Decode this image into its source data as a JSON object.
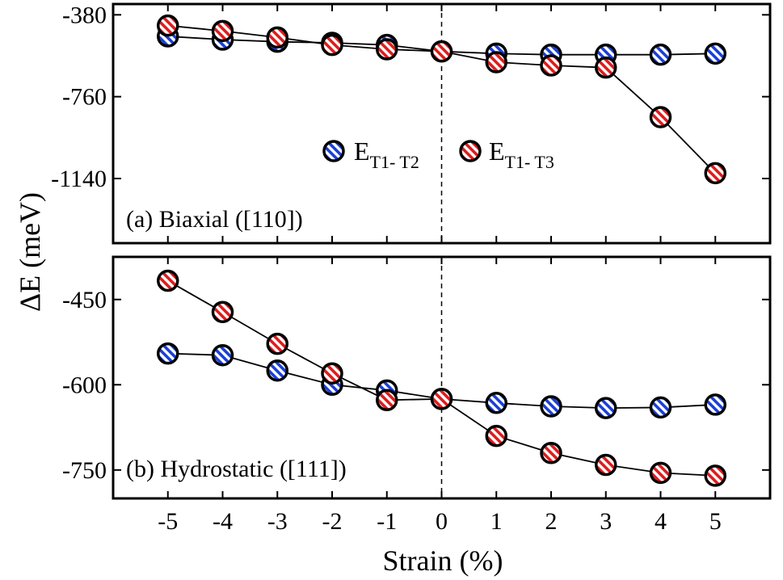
{
  "chart_data": {
    "type": "line",
    "xlabel": "Strain (%)",
    "ylabel": "ΔE  (meV)",
    "x": [
      -5,
      -4,
      -3,
      -2,
      -1,
      0,
      1,
      2,
      3,
      4,
      5
    ],
    "x_tick_labels": [
      "-5",
      "-4",
      "-3",
      "-2",
      "-1",
      "0",
      "1",
      "2",
      "3",
      "4",
      "5"
    ],
    "xlim": [
      -6,
      6
    ],
    "zero_line": "dashed vertical line at 0",
    "legend": {
      "placement": "top panel, center",
      "entries": [
        {
          "main": "E",
          "sub": "T1- T2",
          "color": "#1a3fd9"
        },
        {
          "main": "E",
          "sub": "T1- T3",
          "color": "#e01b1b"
        }
      ]
    },
    "panels": [
      {
        "label": "(a) Biaxial ([110])",
        "ylim": [
          -1440,
          -330
        ],
        "yticks": [
          -380,
          -760,
          -1140
        ],
        "y_tick_labels": [
          "-380",
          "-760",
          "-1140"
        ],
        "series": [
          {
            "name": "E_T1-T2",
            "color": "#1a3fd9",
            "values": [
              -480,
              -495,
              -505,
              -510,
              -520,
              -550,
              -560,
              -565,
              -565,
              -565,
              -560
            ]
          },
          {
            "name": "E_T1-T3",
            "color": "#e01b1b",
            "values": [
              -430,
              -455,
              -485,
              -520,
              -540,
              -550,
              -600,
              -615,
              -625,
              -855,
              -1115
            ]
          }
        ]
      },
      {
        "label": "(b) Hydrostatic ([111])",
        "ylim": [
          -800,
          -375
        ],
        "yticks": [
          -450,
          -600,
          -750
        ],
        "y_tick_labels": [
          "-450",
          "-600",
          "-750"
        ],
        "series": [
          {
            "name": "E_T1-T2",
            "color": "#1a3fd9",
            "values": [
              -545,
              -548,
              -575,
              -600,
              -610,
              -625,
              -632,
              -638,
              -641,
              -640,
              -635
            ]
          },
          {
            "name": "E_T1-T3",
            "color": "#e01b1b",
            "values": [
              -417,
              -472,
              -528,
              -580,
              -627,
              -625,
              -690,
              -720,
              -741,
              -755,
              -760
            ]
          }
        ]
      }
    ]
  }
}
